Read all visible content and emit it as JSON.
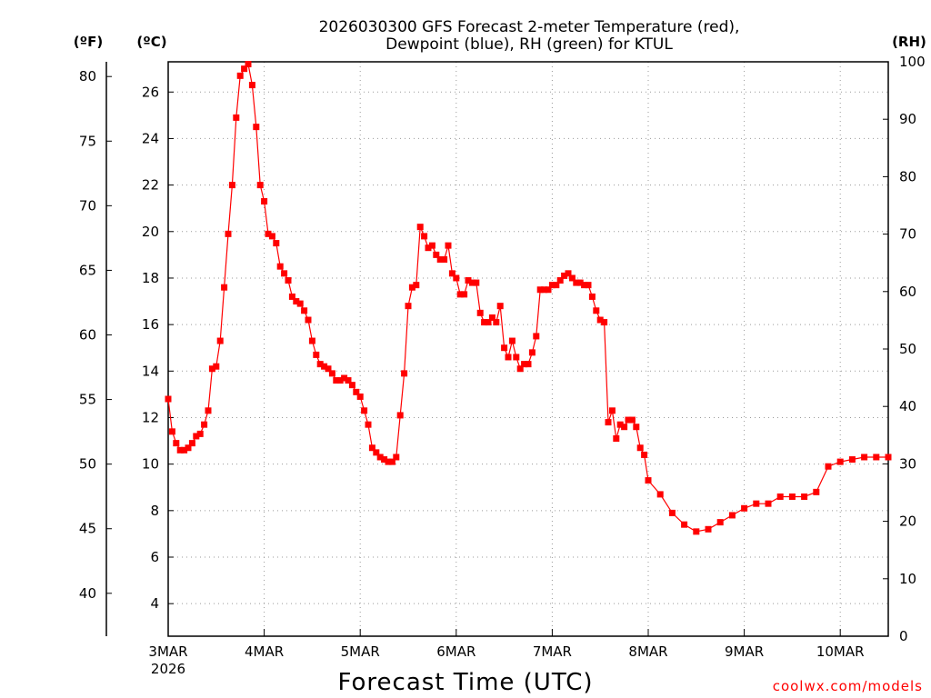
{
  "chart_data": {
    "type": "line",
    "title_line1": "2026030300 GFS Forecast 2-meter Temperature (red),",
    "title_line2": "Dewpoint (blue), RH (green) for KTUL",
    "xlabel": "Forecast Time (UTC)",
    "credit": "coolwx.com/models",
    "unit_f": "(ºF)",
    "unit_c": "(ºC)",
    "unit_rh": "(RH)",
    "x_range_hours": [
      0,
      180
    ],
    "celsius_range": [
      2.6,
      27.3
    ],
    "rh_range": [
      0,
      100
    ],
    "x_ticks": [
      {
        "hour": 0,
        "label": "3MAR",
        "sub": "2026"
      },
      {
        "hour": 24,
        "label": "4MAR",
        "sub": ""
      },
      {
        "hour": 48,
        "label": "5MAR",
        "sub": ""
      },
      {
        "hour": 72,
        "label": "6MAR",
        "sub": ""
      },
      {
        "hour": 96,
        "label": "7MAR",
        "sub": ""
      },
      {
        "hour": 120,
        "label": "8MAR",
        "sub": ""
      },
      {
        "hour": 144,
        "label": "9MAR",
        "sub": ""
      },
      {
        "hour": 168,
        "label": "10MAR",
        "sub": ""
      }
    ],
    "celsius_ticks": [
      "4",
      "6",
      "8",
      "10",
      "12",
      "14",
      "16",
      "18",
      "20",
      "22",
      "24",
      "26"
    ],
    "fahrenheit_ticks": [
      "40",
      "45",
      "50",
      "55",
      "60",
      "65",
      "70",
      "75",
      "80"
    ],
    "rh_ticks": [
      "0",
      "10",
      "20",
      "30",
      "40",
      "50",
      "60",
      "70",
      "80",
      "90",
      "100"
    ],
    "grid": true,
    "series": [
      {
        "name": "Temperature",
        "color": "#ff0000",
        "marker": "filled-square",
        "x": [
          0,
          1,
          2,
          3,
          4,
          5,
          6,
          7,
          8,
          9,
          10,
          11,
          12,
          13,
          14,
          15,
          16,
          17,
          18,
          19,
          20,
          21,
          22,
          23,
          24,
          25,
          26,
          27,
          28,
          29,
          30,
          31,
          32,
          33,
          34,
          35,
          36,
          37,
          38,
          39,
          40,
          41,
          42,
          43,
          44,
          45,
          46,
          47,
          48,
          49,
          50,
          51,
          52,
          53,
          54,
          55,
          56,
          57,
          58,
          59,
          60,
          61,
          62,
          63,
          64,
          65,
          66,
          67,
          68,
          69,
          70,
          71,
          72,
          73,
          74,
          75,
          76,
          77,
          78,
          79,
          80,
          81,
          82,
          83,
          84,
          85,
          86,
          87,
          88,
          89,
          90,
          91,
          92,
          93,
          94,
          95,
          96,
          97,
          98,
          99,
          100,
          101,
          102,
          103,
          104,
          105,
          106,
          107,
          108,
          109,
          110,
          111,
          112,
          113,
          114,
          115,
          116,
          117,
          118,
          119,
          120,
          123,
          126,
          129,
          132,
          135,
          138,
          141,
          144,
          147,
          150,
          153,
          156,
          159,
          162,
          165,
          168,
          171,
          174,
          177,
          180
        ],
        "values": [
          12.8,
          11.4,
          10.9,
          10.6,
          10.6,
          10.7,
          10.9,
          11.2,
          11.3,
          11.7,
          12.3,
          14.1,
          14.2,
          15.3,
          17.6,
          19.9,
          22.0,
          24.9,
          26.7,
          27.0,
          27.2,
          26.3,
          24.5,
          22.0,
          21.3,
          19.9,
          19.8,
          19.5,
          18.5,
          18.2,
          17.9,
          17.2,
          17.0,
          16.9,
          16.6,
          16.2,
          15.3,
          14.7,
          14.3,
          14.2,
          14.1,
          13.9,
          13.6,
          13.6,
          13.7,
          13.6,
          13.4,
          13.1,
          12.9,
          12.3,
          11.7,
          10.7,
          10.5,
          10.3,
          10.2,
          10.1,
          10.1,
          10.3,
          12.1,
          13.9,
          16.8,
          17.6,
          17.7,
          20.2,
          19.8,
          19.3,
          19.4,
          19.0,
          18.8,
          18.8,
          19.4,
          18.2,
          18.0,
          17.3,
          17.3,
          17.9,
          17.8,
          17.8,
          16.5,
          16.1,
          16.1,
          16.3,
          16.1,
          16.8,
          15.0,
          14.6,
          15.3,
          14.6,
          14.1,
          14.3,
          14.3,
          14.8,
          15.5,
          17.5,
          17.5,
          17.5,
          17.7,
          17.7,
          17.9,
          18.1,
          18.2,
          18.0,
          17.8,
          17.8,
          17.7,
          17.7,
          17.2,
          16.6,
          16.2,
          16.1,
          11.8,
          12.3,
          11.1,
          11.7,
          11.6,
          11.9,
          11.9,
          11.6,
          10.7,
          10.4,
          9.3,
          8.7,
          7.9,
          7.4,
          7.1,
          7.2,
          7.5,
          7.8,
          8.1,
          8.3,
          8.3,
          8.6,
          8.6,
          8.6,
          8.8,
          9.9,
          10.1,
          10.2,
          10.3,
          10.3,
          10.3
        ],
        "c_values": [
          12.8,
          11.4,
          10.9,
          10.6,
          10.6,
          10.7,
          10.9,
          11.2,
          11.3,
          11.7,
          12.3,
          14.1,
          14.2,
          15.3,
          17.6,
          19.9,
          22.0,
          24.9,
          26.7,
          27.0,
          27.2,
          26.3,
          24.5,
          22.0,
          21.3,
          19.9,
          19.8,
          19.5,
          18.5,
          18.2,
          17.9,
          17.2,
          17.0,
          16.9,
          16.6,
          16.2,
          15.3,
          14.7,
          14.3,
          14.2,
          14.1,
          13.9,
          13.6,
          13.6,
          13.7,
          13.6,
          13.4,
          13.1,
          12.9,
          12.3,
          11.7,
          10.7,
          10.5,
          10.3,
          10.2,
          10.1,
          10.1,
          10.3,
          12.1,
          13.9,
          16.8,
          17.6,
          17.7,
          20.2,
          19.8,
          19.3,
          19.4,
          19.0,
          18.8,
          18.8,
          19.4,
          18.2,
          18.0,
          17.3,
          17.3,
          17.9,
          17.8,
          17.8,
          16.5,
          16.1,
          16.1,
          16.3,
          16.1,
          16.8,
          15.0,
          14.6,
          15.3,
          14.6,
          14.1,
          14.3,
          14.3,
          14.8,
          15.5,
          17.5,
          17.5,
          17.5,
          17.7,
          17.7,
          17.9,
          18.1,
          18.2,
          18.0,
          17.8,
          17.8,
          17.7,
          17.7,
          17.2,
          16.6,
          16.2,
          16.1,
          11.8,
          12.3,
          11.1,
          11.7,
          11.6,
          11.9,
          11.9,
          11.6,
          10.7,
          10.4,
          9.3,
          8.7,
          7.9,
          7.4,
          7.1,
          7.2,
          7.5,
          7.8,
          8.1,
          8.3,
          8.3,
          8.6,
          8.6,
          8.6,
          8.8,
          9.9,
          10.1,
          10.2,
          10.3,
          10.3,
          10.3
        ]
      }
    ]
  }
}
